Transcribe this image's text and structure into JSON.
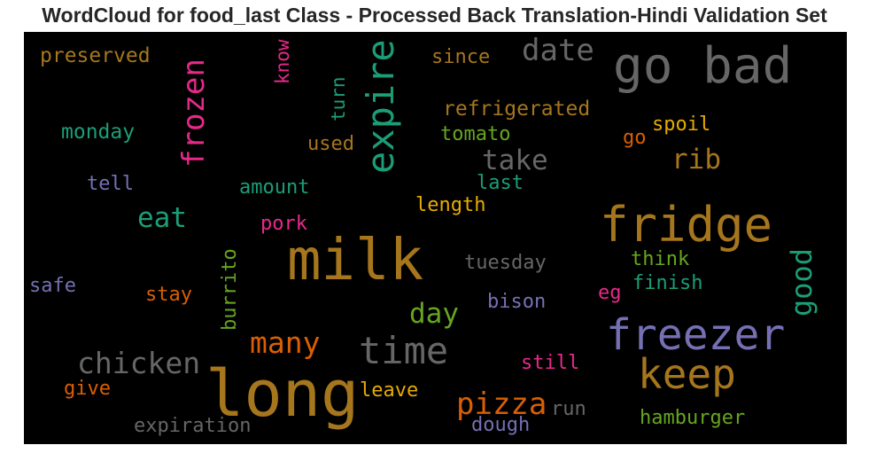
{
  "title": "WordCloud for food_last Class - Processed Back Translation-Hindi Validation Set",
  "chart_data": {
    "type": "wordcloud",
    "background": "#000000",
    "palette": {
      "ochre": "#a6761d",
      "grey": "#666666",
      "teal": "#1b9e77",
      "pink": "#e7298a",
      "orange": "#d95f02",
      "purple": "#7570b3",
      "green": "#66a61e",
      "gold": "#e6ab02"
    },
    "words": [
      {
        "text": "long",
        "color": "#a6761d",
        "weight": 72
      },
      {
        "text": "milk",
        "color": "#a6761d",
        "weight": 64
      },
      {
        "text": "go bad",
        "color": "#666666",
        "weight": 56
      },
      {
        "text": "fridge",
        "color": "#a6761d",
        "weight": 54
      },
      {
        "text": "freezer",
        "color": "#7570b3",
        "weight": 48
      },
      {
        "text": "keep",
        "color": "#a6761d",
        "weight": 46
      },
      {
        "text": "expire",
        "color": "#1b9e77",
        "weight": 42
      },
      {
        "text": "time",
        "color": "#666666",
        "weight": 42
      },
      {
        "text": "frozen",
        "color": "#e7298a",
        "weight": 34
      },
      {
        "text": "date",
        "color": "#666666",
        "weight": 34
      },
      {
        "text": "pizza",
        "color": "#d95f02",
        "weight": 34
      },
      {
        "text": "chicken",
        "color": "#666666",
        "weight": 33
      },
      {
        "text": "many",
        "color": "#d95f02",
        "weight": 33
      },
      {
        "text": "good",
        "color": "#1b9e77",
        "weight": 32
      },
      {
        "text": "eat",
        "color": "#1b9e77",
        "weight": 31
      },
      {
        "text": "take",
        "color": "#666666",
        "weight": 31
      },
      {
        "text": "rib",
        "color": "#a6761d",
        "weight": 31
      },
      {
        "text": "day",
        "color": "#66a61e",
        "weight": 31
      },
      {
        "text": "refrigerated",
        "color": "#a6761d",
        "weight": 23
      },
      {
        "text": "preserved",
        "color": "#a6761d",
        "weight": 23
      },
      {
        "text": "since",
        "color": "#a6761d",
        "weight": 22
      },
      {
        "text": "monday",
        "color": "#1b9e77",
        "weight": 23
      },
      {
        "text": "used",
        "color": "#a6761d",
        "weight": 22
      },
      {
        "text": "tomato",
        "color": "#66a61e",
        "weight": 22
      },
      {
        "text": "spoil",
        "color": "#e6ab02",
        "weight": 22
      },
      {
        "text": "go",
        "color": "#d95f02",
        "weight": 22
      },
      {
        "text": "tell",
        "color": "#7570b3",
        "weight": 22
      },
      {
        "text": "amount",
        "color": "#1b9e77",
        "weight": 22
      },
      {
        "text": "last",
        "color": "#1b9e77",
        "weight": 22
      },
      {
        "text": "length",
        "color": "#e6ab02",
        "weight": 22
      },
      {
        "text": "pork",
        "color": "#e7298a",
        "weight": 22
      },
      {
        "text": "tuesday",
        "color": "#666666",
        "weight": 22
      },
      {
        "text": "think",
        "color": "#66a61e",
        "weight": 22
      },
      {
        "text": "finish",
        "color": "#1b9e77",
        "weight": 22
      },
      {
        "text": "eg",
        "color": "#e7298a",
        "weight": 22
      },
      {
        "text": "safe",
        "color": "#7570b3",
        "weight": 22
      },
      {
        "text": "stay",
        "color": "#d95f02",
        "weight": 22
      },
      {
        "text": "bison",
        "color": "#7570b3",
        "weight": 22
      },
      {
        "text": "burrito",
        "color": "#66a61e",
        "weight": 22
      },
      {
        "text": "still",
        "color": "#e7298a",
        "weight": 22
      },
      {
        "text": "give",
        "color": "#d95f02",
        "weight": 22
      },
      {
        "text": "leave",
        "color": "#e6ab02",
        "weight": 22
      },
      {
        "text": "run",
        "color": "#666666",
        "weight": 22
      },
      {
        "text": "hamburger",
        "color": "#66a61e",
        "weight": 22
      },
      {
        "text": "expiration",
        "color": "#666666",
        "weight": 22
      },
      {
        "text": "dough",
        "color": "#7570b3",
        "weight": 22
      },
      {
        "text": "know",
        "color": "#e7298a",
        "weight": 21
      },
      {
        "text": "turn",
        "color": "#1b9e77",
        "weight": 21
      }
    ]
  }
}
